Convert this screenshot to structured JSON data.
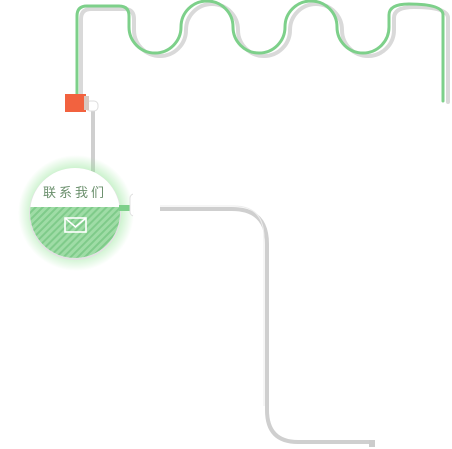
{
  "contact": {
    "label": "联系我们",
    "icon": "mail-icon"
  },
  "colors": {
    "wire_green": "#7dd08a",
    "wire_shadow": "#d6d6d6",
    "wire_grey": "#cfcfcf",
    "plug_orange": "#f2623f",
    "badge_glow": "#8be38f",
    "badge_stripe": "#8ed497"
  }
}
